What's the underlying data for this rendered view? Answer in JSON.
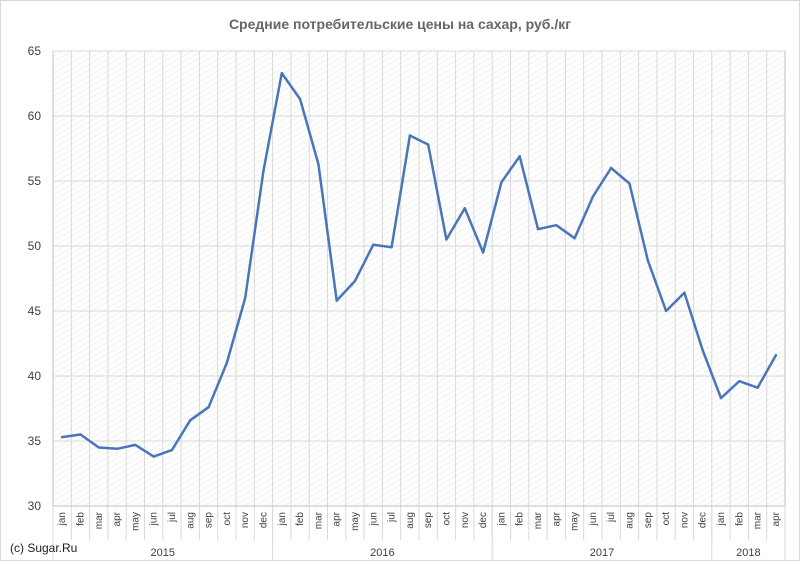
{
  "title": "Средние потребительские цены на сахар, руб./кг",
  "credit": "(c) Sugar.Ru",
  "colors": {
    "line": "#4a76b9",
    "grid": "#d9d9d9",
    "hatch": "#e6e6e6",
    "axis": "#bfbfbf"
  },
  "chart_data": {
    "type": "line",
    "title": "Средние потребительские цены на сахар, руб./кг",
    "ylim": [
      30,
      65
    ],
    "yticks": [
      30,
      35,
      40,
      45,
      50,
      55,
      60,
      65
    ],
    "grid": true,
    "legend": "none",
    "categories": [
      "jan",
      "feb",
      "mar",
      "apr",
      "may",
      "jun",
      "jul",
      "aug",
      "sep",
      "oct",
      "nov",
      "dec",
      "jan",
      "feb",
      "mar",
      "apr",
      "may",
      "jun",
      "jul",
      "aug",
      "sep",
      "oct",
      "nov",
      "dec",
      "jan",
      "feb",
      "mar",
      "apr",
      "may",
      "jun",
      "jul",
      "aug",
      "sep",
      "oct",
      "nov",
      "dec",
      "jan",
      "feb",
      "mar",
      "apr"
    ],
    "years": [
      {
        "label": "2015",
        "months": 12
      },
      {
        "label": "2016",
        "months": 12
      },
      {
        "label": "2017",
        "months": 12
      },
      {
        "label": "2018",
        "months": 4
      }
    ],
    "series": [
      {
        "values": [
          35.3,
          35.5,
          34.5,
          34.4,
          34.7,
          33.8,
          34.3,
          36.6,
          37.6,
          41.0,
          46.0,
          55.8,
          63.3,
          61.3,
          56.3,
          45.8,
          47.3,
          50.1,
          49.9,
          58.5,
          57.8,
          50.5,
          52.9,
          49.5,
          54.9,
          56.9,
          51.3,
          51.6,
          50.6,
          53.8,
          56.0,
          54.8,
          48.9,
          45.0,
          46.4,
          42.0,
          38.3,
          39.6,
          39.1,
          41.6
        ]
      }
    ]
  }
}
